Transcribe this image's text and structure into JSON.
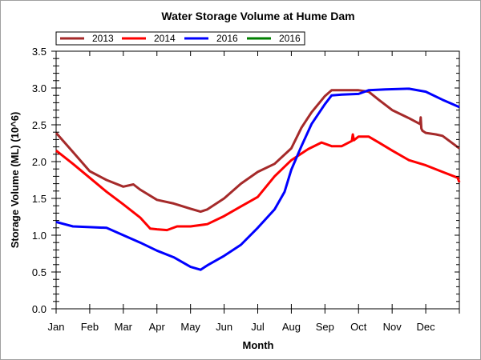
{
  "chart_data": {
    "type": "line",
    "title": "Water Storage Volume at Hume Dam",
    "xlabel": "Month",
    "ylabel": "Storage Volume (ML) (10^6)",
    "xlim": [
      0,
      12
    ],
    "ylim": [
      0,
      3.5
    ],
    "x_tick_labels": [
      "Jan",
      "Feb",
      "Mar",
      "Apr",
      "May",
      "Jun",
      "Jul",
      "Aug",
      "Sep",
      "Oct",
      "Nov",
      "Dec"
    ],
    "y_ticks": [
      0.0,
      0.5,
      1.0,
      1.5,
      2.0,
      2.5,
      3.0,
      3.5
    ],
    "y_tick_labels": [
      "0.0",
      "0.5",
      "1.0",
      "1.5",
      "2.0",
      "2.5",
      "3.0",
      "3.5"
    ],
    "grid": false,
    "legend_position": "top-left",
    "series": [
      {
        "name": "2013",
        "color": "#a52a2a",
        "x": [
          0,
          0.5,
          1.0,
          1.5,
          2.0,
          2.3,
          2.5,
          3.0,
          3.5,
          4.0,
          4.3,
          4.5,
          5.0,
          5.5,
          6.0,
          6.5,
          7.0,
          7.3,
          7.6,
          8.0,
          8.2,
          9.0,
          9.3,
          9.6,
          10.0,
          10.5,
          10.83,
          10.85,
          10.87,
          10.9,
          11.0,
          11.3,
          11.5,
          12.0
        ],
        "values": [
          2.39,
          2.13,
          1.87,
          1.75,
          1.66,
          1.69,
          1.62,
          1.48,
          1.43,
          1.36,
          1.32,
          1.35,
          1.5,
          1.7,
          1.86,
          1.97,
          2.18,
          2.46,
          2.67,
          2.89,
          2.97,
          2.97,
          2.95,
          2.84,
          2.7,
          2.59,
          2.51,
          2.6,
          2.45,
          2.42,
          2.39,
          2.37,
          2.35,
          2.18
        ]
      },
      {
        "name": "2014",
        "color": "#ff0000",
        "x": [
          0,
          0.5,
          1.0,
          1.5,
          2.0,
          2.5,
          2.8,
          3.0,
          3.3,
          3.6,
          4.0,
          4.5,
          5.0,
          5.5,
          6.0,
          6.5,
          7.0,
          7.5,
          7.9,
          8.2,
          8.5,
          8.8,
          8.83,
          8.86,
          9.0,
          9.3,
          9.6,
          10.0,
          10.5,
          11.0,
          11.5,
          11.95,
          12.0
        ],
        "values": [
          2.15,
          1.97,
          1.78,
          1.59,
          1.42,
          1.24,
          1.09,
          1.08,
          1.07,
          1.12,
          1.12,
          1.15,
          1.26,
          1.39,
          1.52,
          1.8,
          2.02,
          2.17,
          2.26,
          2.21,
          2.21,
          2.28,
          2.37,
          2.29,
          2.34,
          2.34,
          2.26,
          2.15,
          2.02,
          1.95,
          1.86,
          1.78,
          1.72
        ]
      },
      {
        "name": "2016",
        "color": "#0000ff",
        "x": [
          0,
          0.5,
          1.0,
          1.5,
          2.0,
          2.5,
          3.0,
          3.5,
          4.0,
          4.3,
          4.5,
          5.0,
          5.5,
          6.0,
          6.5,
          6.8,
          7.0,
          7.3,
          7.6,
          8.0,
          8.2,
          8.5,
          9.0,
          9.3,
          9.8,
          10.5,
          11.0,
          11.5,
          12.0
        ],
        "values": [
          1.18,
          1.12,
          1.11,
          1.1,
          1.0,
          0.9,
          0.79,
          0.7,
          0.57,
          0.53,
          0.59,
          0.72,
          0.87,
          1.1,
          1.35,
          1.59,
          1.89,
          2.21,
          2.51,
          2.78,
          2.9,
          2.91,
          2.92,
          2.97,
          2.98,
          2.99,
          2.95,
          2.84,
          2.74
        ]
      },
      {
        "name": "2016",
        "color": "#008000",
        "x": [],
        "values": []
      }
    ]
  }
}
